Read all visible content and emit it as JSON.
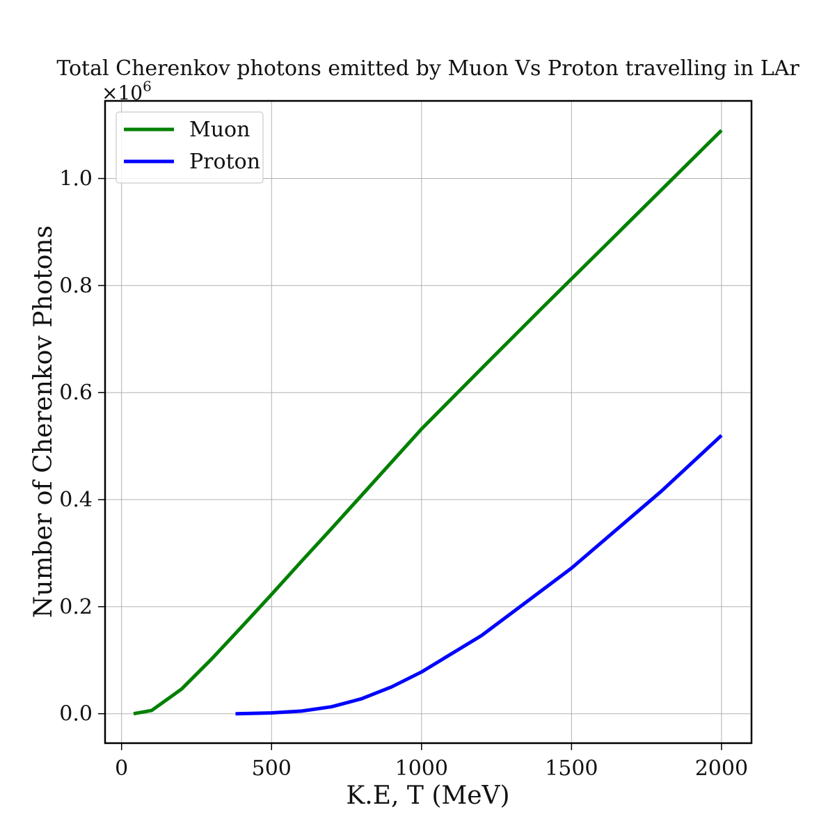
{
  "chart_data": {
    "type": "line",
    "title": "Total Cherenkov photons emitted by Muon Vs Proton travelling in LAr",
    "xlabel": "K.E, T (MeV)",
    "ylabel": "Number of Cherenkov Photons",
    "y_offset_label": "×10",
    "y_offset_exponent": "6",
    "xlim": [
      -55,
      2100
    ],
    "ylim": [
      -0.055,
      1.145
    ],
    "x_ticks": [
      0,
      500,
      1000,
      1500,
      2000
    ],
    "x_tick_labels": [
      "0",
      "500",
      "1000",
      "1500",
      "2000"
    ],
    "y_ticks": [
      0.0,
      0.2,
      0.4,
      0.6,
      0.8,
      1.0
    ],
    "y_tick_labels": [
      "0.0",
      "0.2",
      "0.4",
      "0.6",
      "0.8",
      "1.0"
    ],
    "grid": true,
    "legend_position": "top-left",
    "series": [
      {
        "name": "Muon",
        "color": "#008000",
        "x": [
          40,
          100,
          200,
          300,
          400,
          500,
          600,
          700,
          800,
          900,
          1000,
          1200,
          1400,
          1600,
          1800,
          2000
        ],
        "y": [
          0.0,
          0.006,
          0.046,
          0.102,
          0.162,
          0.223,
          0.285,
          0.346,
          0.408,
          0.47,
          0.532,
          0.645,
          0.757,
          0.868,
          0.979,
          1.09
        ]
      },
      {
        "name": "Proton",
        "color": "#0000ff",
        "x": [
          380,
          500,
          600,
          700,
          800,
          900,
          1000,
          1200,
          1500,
          1800,
          2000
        ],
        "y": [
          0.0,
          0.0015,
          0.005,
          0.013,
          0.028,
          0.05,
          0.078,
          0.146,
          0.272,
          0.416,
          0.52
        ]
      }
    ]
  }
}
